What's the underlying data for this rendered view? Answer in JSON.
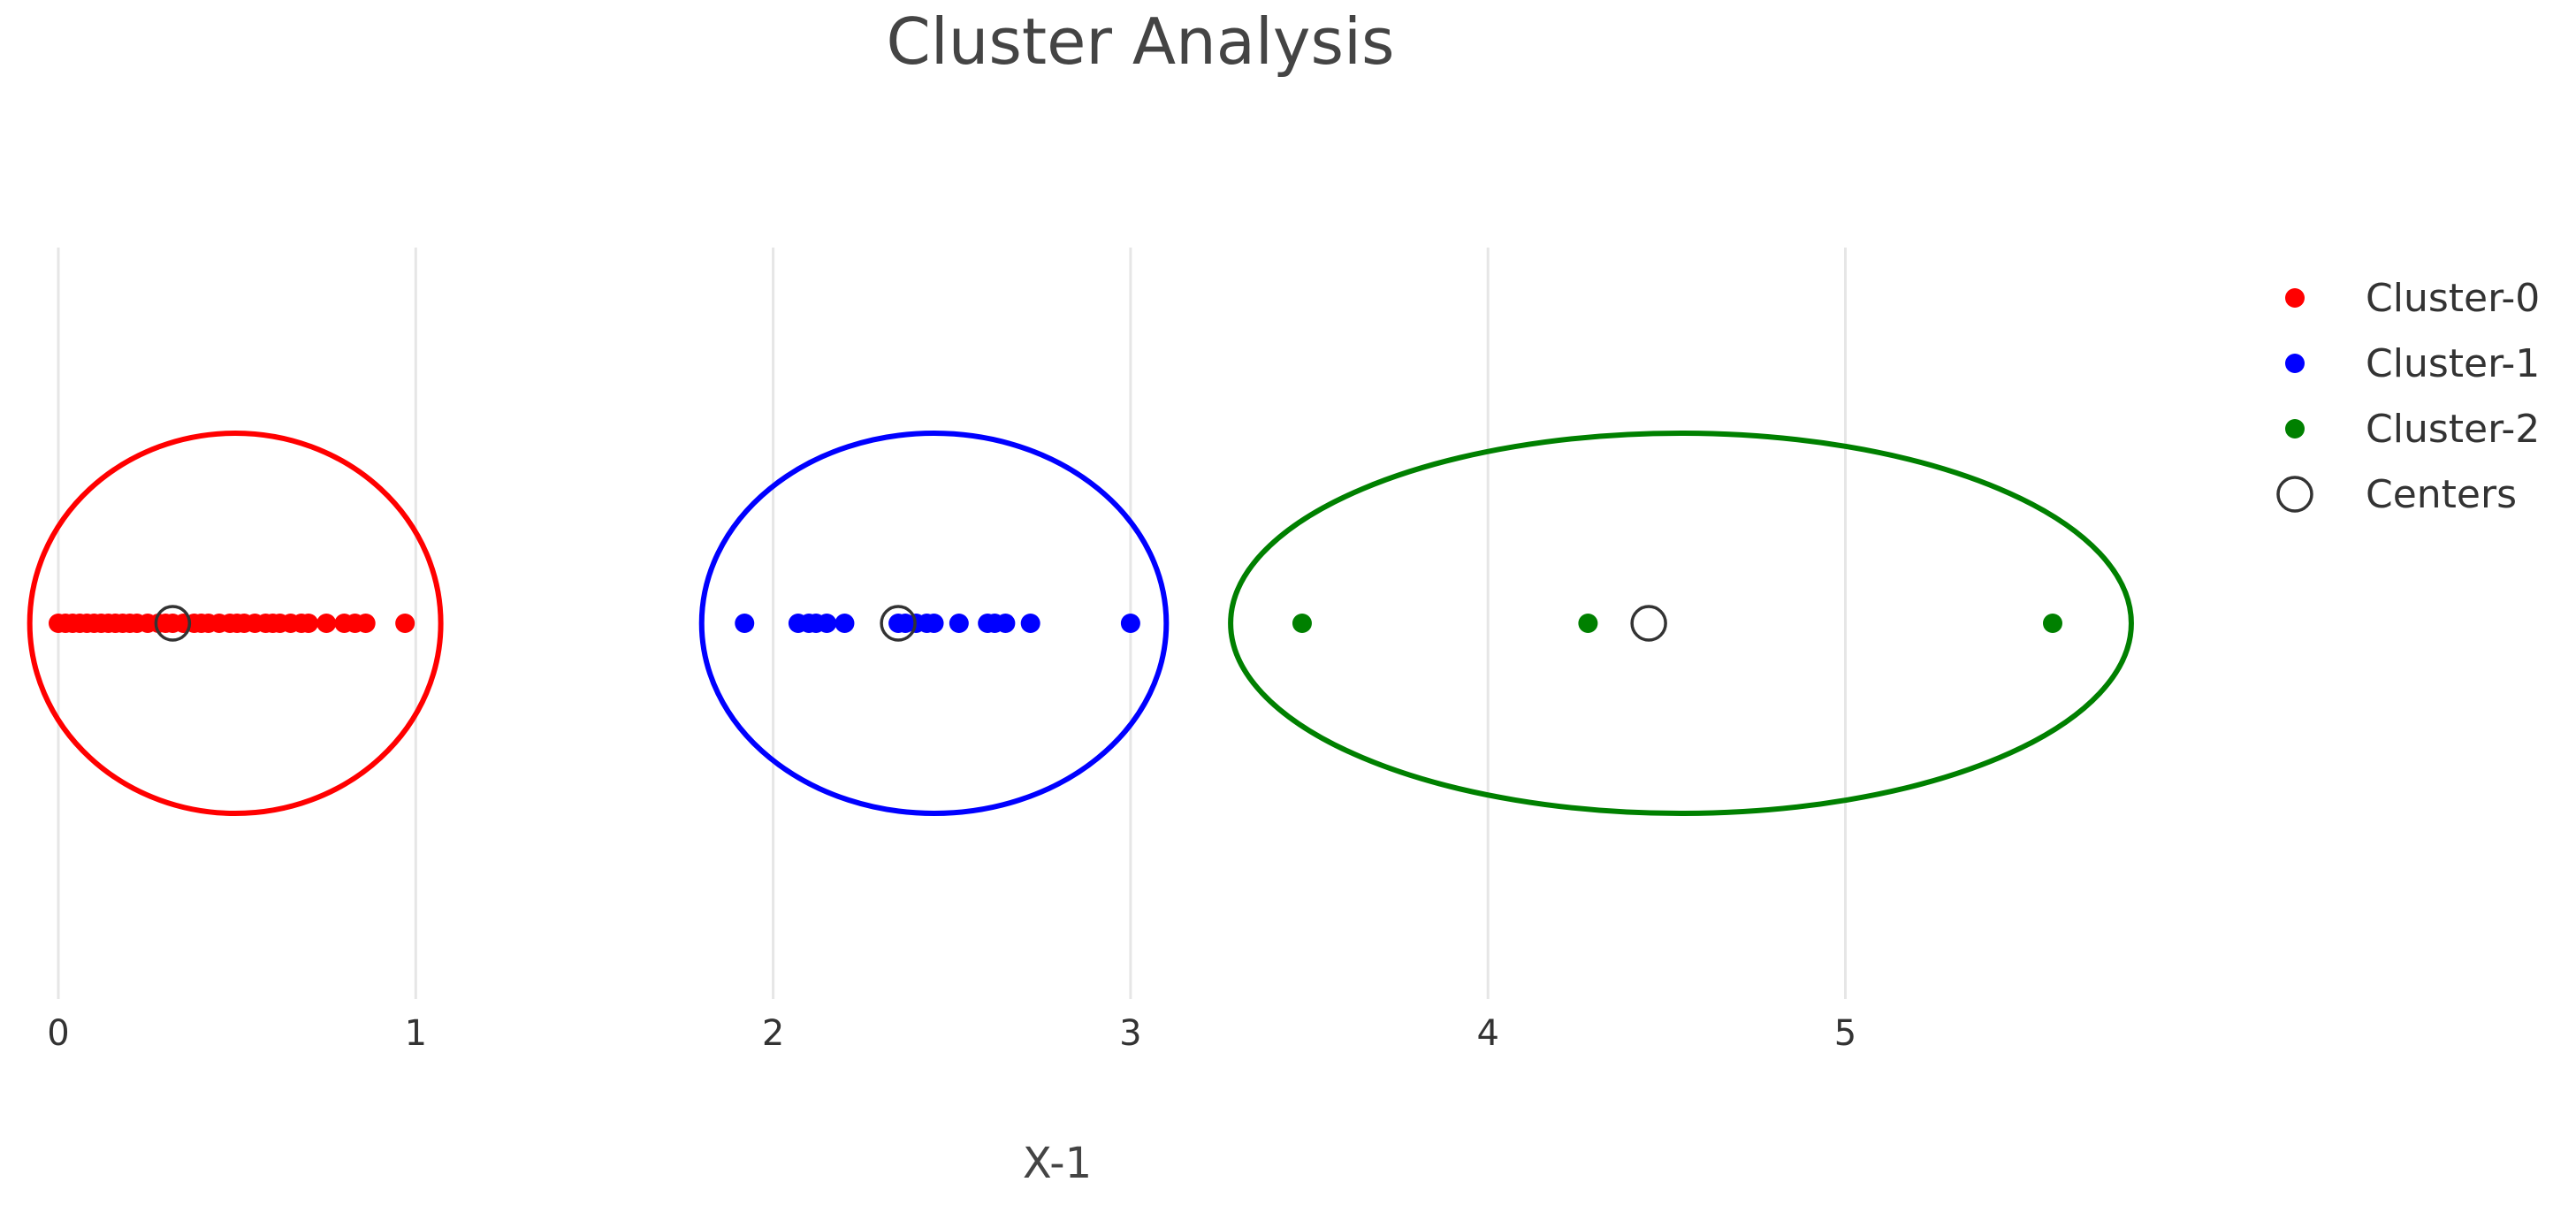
{
  "chart_data": {
    "type": "scatter",
    "title": "Cluster Analysis",
    "xlabel": "X-1",
    "ylabel": "",
    "xlim": [
      -0.08,
      5.78
    ],
    "ylim": [
      -1,
      1
    ],
    "xticks": [
      0,
      1,
      2,
      3,
      4,
      5
    ],
    "xtick_labels": [
      "0",
      "1",
      "2",
      "3",
      "4",
      "5"
    ],
    "grid": "vertical",
    "legend_position": "top-right",
    "series": [
      {
        "name": "Cluster-0",
        "color": "#ff0000",
        "marker": "filled-circle",
        "x": [
          0.0,
          0.02,
          0.04,
          0.06,
          0.08,
          0.1,
          0.12,
          0.14,
          0.16,
          0.18,
          0.2,
          0.22,
          0.25,
          0.28,
          0.3,
          0.32,
          0.35,
          0.38,
          0.4,
          0.42,
          0.45,
          0.48,
          0.5,
          0.52,
          0.55,
          0.58,
          0.6,
          0.62,
          0.65,
          0.68,
          0.7,
          0.75,
          0.8,
          0.83,
          0.86,
          0.97
        ],
        "y": [
          0,
          0,
          0,
          0,
          0,
          0,
          0,
          0,
          0,
          0,
          0,
          0,
          0,
          0,
          0,
          0,
          0,
          0,
          0,
          0,
          0,
          0,
          0,
          0,
          0,
          0,
          0,
          0,
          0,
          0,
          0,
          0,
          0,
          0,
          0,
          0
        ]
      },
      {
        "name": "Cluster-1",
        "color": "#0000ff",
        "marker": "filled-circle",
        "x": [
          1.92,
          2.07,
          2.1,
          2.12,
          2.15,
          2.2,
          2.35,
          2.37,
          2.4,
          2.43,
          2.45,
          2.52,
          2.6,
          2.62,
          2.65,
          2.72,
          3.0
        ],
        "y": [
          0,
          0,
          0,
          0,
          0,
          0,
          0,
          0,
          0,
          0,
          0,
          0,
          0,
          0,
          0,
          0,
          0
        ]
      },
      {
        "name": "Cluster-2",
        "color": "#008000",
        "marker": "filled-circle",
        "x": [
          3.48,
          4.28,
          5.58
        ],
        "y": [
          0,
          0,
          0
        ]
      },
      {
        "name": "Centers",
        "color": "#333333",
        "marker": "open-circle",
        "x": [
          0.32,
          2.35,
          4.45
        ],
        "y": [
          0,
          0,
          0
        ]
      }
    ],
    "shapes": [
      {
        "type": "ellipse",
        "color": "#ff0000",
        "x0": -0.08,
        "x1": 1.07,
        "y0": -1,
        "y1": 1
      },
      {
        "type": "ellipse",
        "color": "#0000ff",
        "x0": 1.8,
        "x1": 3.1,
        "y0": -1,
        "y1": 1
      },
      {
        "type": "ellipse",
        "color": "#008000",
        "x0": 3.28,
        "x1": 5.8,
        "y0": -1,
        "y1": 1
      }
    ]
  }
}
